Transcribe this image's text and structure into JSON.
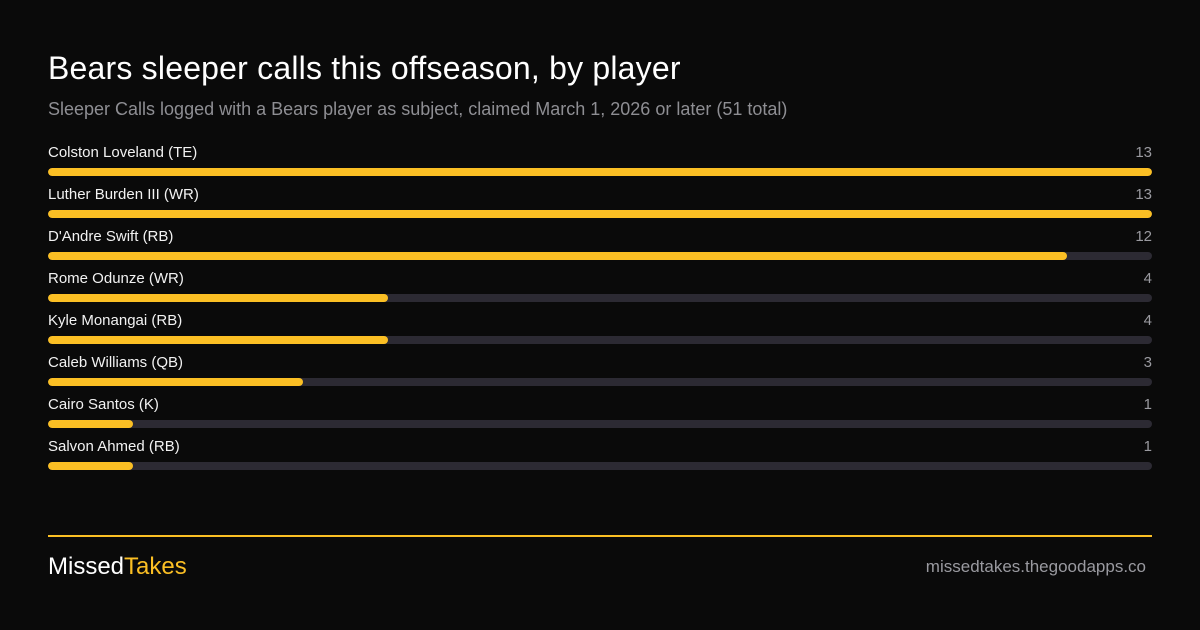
{
  "chart_data": {
    "type": "bar",
    "orientation": "horizontal",
    "title": "Bears sleeper calls this offseason, by player",
    "subtitle": "Sleeper Calls logged with a Bears player as subject, claimed March 1, 2026 or later (51 total)",
    "categories": [
      "Colston Loveland (TE)",
      "Luther Burden III (WR)",
      "D'Andre Swift (RB)",
      "Rome Odunze (WR)",
      "Kyle Monangai (RB)",
      "Caleb Williams (QB)",
      "Cairo Santos (K)",
      "Salvon Ahmed (RB)"
    ],
    "values": [
      13,
      13,
      12,
      4,
      4,
      3,
      1,
      1
    ],
    "xlim": [
      0,
      13
    ],
    "grid": false,
    "legend": "none",
    "colors": {
      "bar": "#fbbf24",
      "track": "#2c2a33"
    }
  },
  "footer": {
    "brand_part1": "Missed",
    "brand_part2": "Takes",
    "site": "missedtakes.thegoodapps.co"
  },
  "colors": {
    "background": "#0a0a0a",
    "accent": "#fbbf24"
  }
}
